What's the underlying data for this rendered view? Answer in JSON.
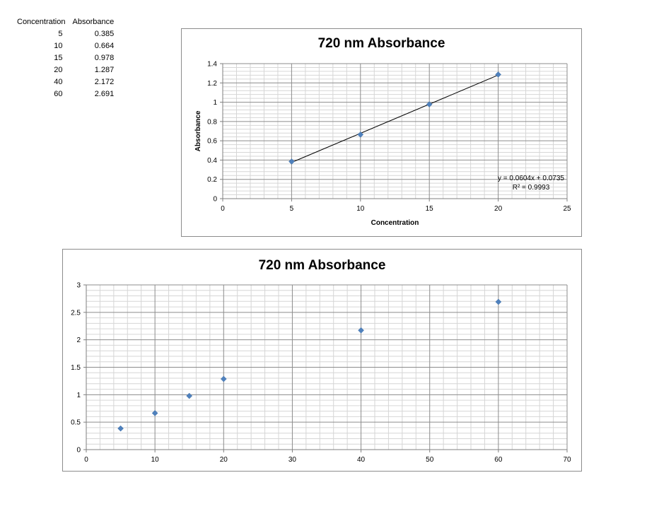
{
  "table": {
    "headers": [
      "Concentration",
      "Absorbance"
    ],
    "rows": [
      [
        "5",
        "0.385"
      ],
      [
        "10",
        "0.664"
      ],
      [
        "15",
        "0.978"
      ],
      [
        "20",
        "1.287"
      ],
      [
        "40",
        "2.172"
      ],
      [
        "60",
        "2.691"
      ]
    ]
  },
  "chart_data": [
    {
      "type": "scatter",
      "title": "720 nm Absorbance",
      "xlabel": "Concentration",
      "ylabel": "Absorbance",
      "xlim": [
        0,
        25
      ],
      "ylim": [
        0,
        1.4
      ],
      "xticks": [
        0,
        5,
        10,
        15,
        20,
        25
      ],
      "yticks": [
        0,
        0.2,
        0.4,
        0.6,
        0.8,
        1,
        1.2,
        1.4
      ],
      "grid": true,
      "series": [
        {
          "x": [
            5,
            10,
            15,
            20
          ],
          "y": [
            0.385,
            0.664,
            0.978,
            1.287
          ]
        }
      ],
      "trendline": {
        "type": "linear",
        "slope": 0.0604,
        "intercept": 0.0735,
        "equation": "y = 0.0604x + 0.0735",
        "r2": "R² = 0.9993"
      },
      "marker_color": "#4f81bd"
    },
    {
      "type": "scatter",
      "title": "720 nm Absorbance",
      "xlabel": "",
      "ylabel": "",
      "xlim": [
        0,
        70
      ],
      "ylim": [
        0,
        3
      ],
      "xticks": [
        0,
        10,
        20,
        30,
        40,
        50,
        60,
        70
      ],
      "yticks": [
        0,
        0.5,
        1,
        1.5,
        2,
        2.5,
        3
      ],
      "grid": true,
      "series": [
        {
          "x": [
            5,
            10,
            15,
            20,
            40,
            60
          ],
          "y": [
            0.385,
            0.664,
            0.978,
            1.287,
            2.172,
            2.691
          ]
        }
      ],
      "marker_color": "#4f81bd"
    }
  ]
}
